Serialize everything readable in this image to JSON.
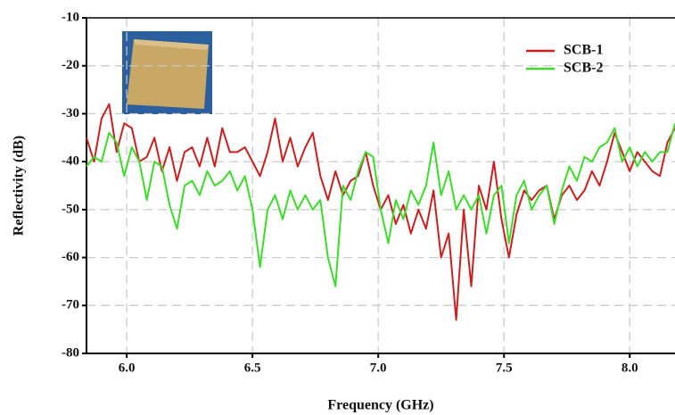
{
  "chart_data": {
    "type": "line",
    "xlabel": "Frequency (GHz)",
    "ylabel": "Reflectivity (dB)",
    "x": [
      5.84,
      5.87,
      5.9,
      5.93,
      5.96,
      5.99,
      6.02,
      6.05,
      6.08,
      6.11,
      6.14,
      6.17,
      6.2,
      6.23,
      6.26,
      6.29,
      6.32,
      6.35,
      6.38,
      6.41,
      6.44,
      6.47,
      6.5,
      6.53,
      6.56,
      6.59,
      6.62,
      6.65,
      6.68,
      6.71,
      6.74,
      6.77,
      6.8,
      6.83,
      6.86,
      6.89,
      6.92,
      6.95,
      6.98,
      7.01,
      7.04,
      7.07,
      7.1,
      7.13,
      7.16,
      7.19,
      7.22,
      7.25,
      7.28,
      7.31,
      7.34,
      7.37,
      7.4,
      7.43,
      7.46,
      7.49,
      7.52,
      7.55,
      7.58,
      7.61,
      7.64,
      7.67,
      7.7,
      7.73,
      7.76,
      7.79,
      7.82,
      7.85,
      7.88,
      7.91,
      7.94,
      7.97,
      8.0,
      8.03,
      8.06,
      8.09,
      8.12,
      8.15,
      8.18
    ],
    "series": [
      {
        "name": "SCB-1",
        "color": "#cc1f1f",
        "values": [
          -35,
          -40,
          -31,
          -28,
          -38,
          -32,
          -33,
          -40,
          -39,
          -35,
          -42,
          -37,
          -44,
          -38,
          -37,
          -41,
          -35,
          -41,
          -33,
          -38,
          -38,
          -37,
          -40,
          -43,
          -38,
          -31,
          -40,
          -35,
          -41,
          -37,
          -34,
          -43,
          -48,
          -42,
          -47,
          -44,
          -43,
          -38,
          -45,
          -50,
          -47,
          -53,
          -49,
          -55,
          -50,
          -54,
          -46,
          -60,
          -55,
          -73,
          -50,
          -66,
          -45,
          -50,
          -40,
          -52,
          -60,
          -51,
          -46,
          -48,
          -46,
          -45,
          -52,
          -47,
          -45,
          -48,
          -46,
          -42,
          -45,
          -40,
          -34,
          -38,
          -42,
          -38,
          -40,
          -42,
          -43,
          -36,
          -33
        ]
      },
      {
        "name": "SCB-2",
        "color": "#3ddc2a",
        "values": [
          -41,
          -39,
          -40,
          -34,
          -36,
          -43,
          -37,
          -40,
          -48,
          -40,
          -41,
          -49,
          -54,
          -45,
          -44,
          -47,
          -42,
          -45,
          -44,
          -42,
          -46,
          -43,
          -50,
          -62,
          -50,
          -47,
          -52,
          -46,
          -50,
          -47,
          -50,
          -48,
          -60,
          -66,
          -45,
          -48,
          -42,
          -38,
          -39,
          -50,
          -57,
          -48,
          -52,
          -46,
          -49,
          -45,
          -36,
          -47,
          -42,
          -50,
          -47,
          -50,
          -47,
          -55,
          -47,
          -45,
          -57,
          -47,
          -44,
          -50,
          -47,
          -45,
          -53,
          -46,
          -41,
          -44,
          -39,
          -40,
          -37,
          -36,
          -33,
          -40,
          -37,
          -41,
          -38,
          -40,
          -38,
          -38,
          -32
        ]
      }
    ],
    "xlim": [
      5.84,
      8.18
    ],
    "ylim": [
      -80,
      -10
    ],
    "xticks": [
      {
        "value": 6,
        "label": "6.0"
      },
      {
        "value": 6.5,
        "label": "6.5"
      },
      {
        "value": 7,
        "label": "7.0"
      },
      {
        "value": 7.5,
        "label": "7.5"
      },
      {
        "value": 8,
        "label": "8.0"
      }
    ],
    "yticks": [
      -80,
      -70,
      -60,
      -50,
      -40,
      -30,
      -20,
      -10
    ],
    "grid": true,
    "legend": "upper right"
  }
}
